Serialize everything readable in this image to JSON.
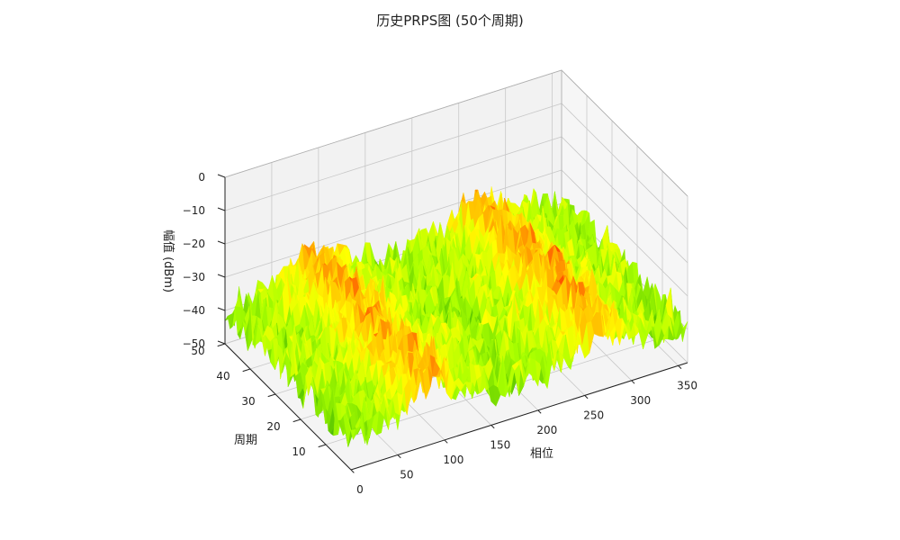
{
  "chart_data": {
    "type": "surface3d",
    "title": "历史PRPS图 (50个周期)",
    "xlabel": "相位",
    "ylabel": "周期",
    "zlabel": "幅值 (dBm)",
    "x_range": [
      0,
      360
    ],
    "y_range": [
      0,
      50
    ],
    "z_range": [
      -50,
      0
    ],
    "x_ticks": [
      0,
      50,
      100,
      150,
      200,
      250,
      300,
      350
    ],
    "y_ticks": [
      10,
      20,
      30,
      40,
      50
    ],
    "z_ticks": [
      0,
      -10,
      -20,
      -30,
      -40,
      -50
    ],
    "grid": true,
    "colormap": [
      "#2e8b1f",
      "#5cc800",
      "#a8ff00",
      "#ffff00",
      "#ffb000",
      "#ff2a00"
    ],
    "value_range_estimate": [
      -48,
      -25
    ],
    "peak_phases_estimate": [
      90,
      270
    ],
    "series": [
      {
        "description_values": "amplitude (dBm) vs phase (deg) and cycle",
        "phase_profile": [
          {
            "phase": 0,
            "mean": -40
          },
          {
            "phase": 45,
            "mean": -38
          },
          {
            "phase": 90,
            "mean": -31
          },
          {
            "phase": 135,
            "mean": -38
          },
          {
            "phase": 180,
            "mean": -40
          },
          {
            "phase": 225,
            "mean": -38
          },
          {
            "phase": 270,
            "mean": -31
          },
          {
            "phase": 315,
            "mean": -38
          },
          {
            "phase": 360,
            "mean": -40
          }
        ]
      }
    ]
  }
}
